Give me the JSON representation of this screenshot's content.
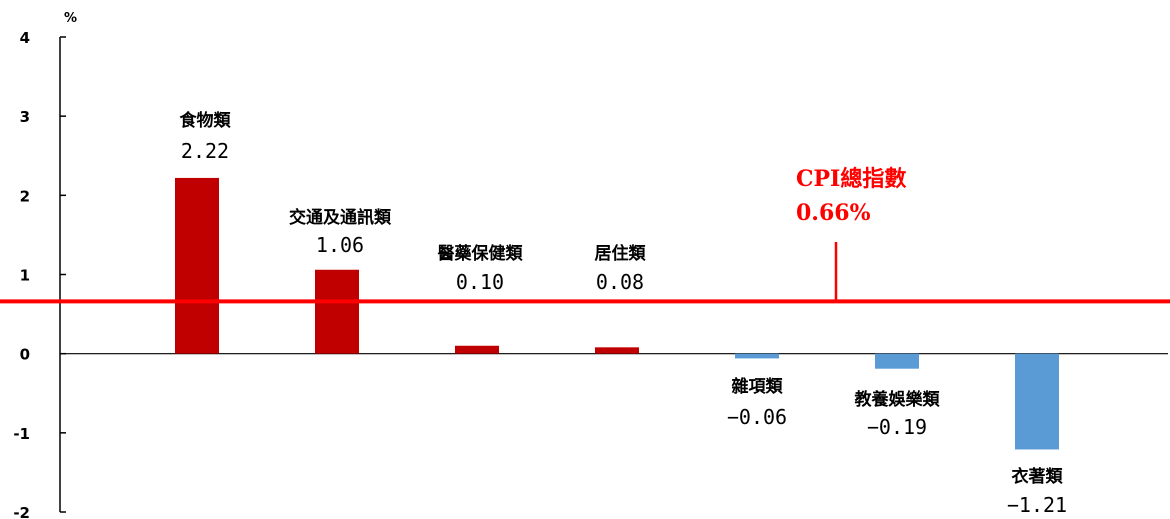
{
  "chart_data": {
    "type": "bar",
    "unit": "%",
    "ylim": [
      -2,
      4
    ],
    "yticks": [
      "4",
      "3",
      "2",
      "1",
      "0",
      "-1",
      "-2"
    ],
    "categories": [
      "食物類",
      "交通及通訊類",
      "醫藥保健類",
      "居住類",
      "雜項類",
      "教養娛樂類",
      "衣著類"
    ],
    "values": [
      2.22,
      1.06,
      0.1,
      0.08,
      -0.06,
      -0.19,
      -1.21
    ],
    "value_labels": [
      "2.22",
      "1.06",
      "0.10",
      "0.08",
      "−0.06",
      "−0.19",
      "−1.21"
    ],
    "reference": {
      "name": "CPI總指數",
      "value": 0.66,
      "label": "0.66%"
    },
    "colors": {
      "positive": "#c00000",
      "negative": "#5b9bd5",
      "reference": "#ff0000"
    }
  }
}
